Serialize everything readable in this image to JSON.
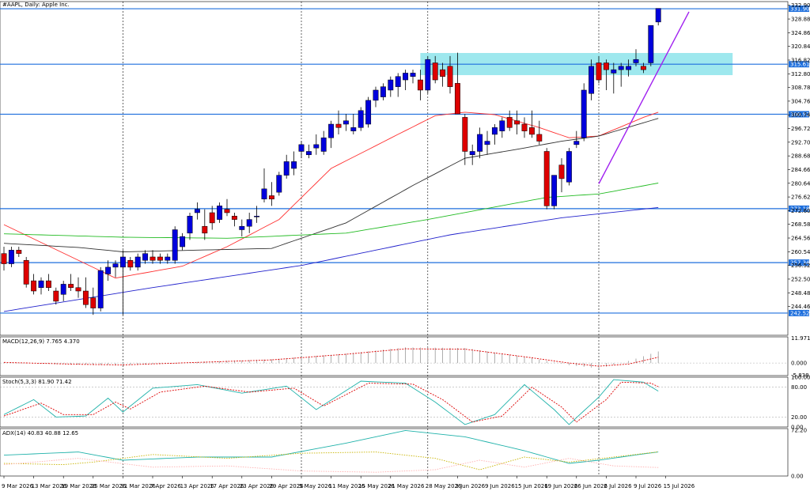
{
  "chart_data": {
    "type": "candlestick",
    "title": "#AAPL, Daily: Apple Inc.",
    "colors": {
      "up": "#0000dd",
      "down": "#dd0000",
      "ma20": "#ff3030",
      "ma50": "#303030",
      "ma100": "#22bb22",
      "ma200": "#2222cc",
      "level": "#1e6fdd",
      "zone": "#9ee8ee",
      "trend": "#a020f0",
      "macd_signal": "#dd0000",
      "stoch_k": "#20b2aa",
      "stoch_d": "#dd0000",
      "adx": "#20b2aa",
      "plus_di": "#c8b400",
      "minus_di": "#ffb0b0"
    },
    "price_axis": {
      "ylim": [
        236.0,
        334.0
      ],
      "ticks": [
        "332.90",
        "328.88",
        "324.86",
        "320.84",
        "316.82",
        "312.80",
        "308.78",
        "304.76",
        "300.74",
        "296.72",
        "292.70",
        "288.68",
        "284.66",
        "280.64",
        "276.62",
        "272.60",
        "268.58",
        "264.56",
        "260.54",
        "256.52",
        "252.50",
        "248.48",
        "244.46"
      ]
    },
    "levels": [
      {
        "price": 331.9,
        "label": "331.90"
      },
      {
        "price": 315.61,
        "label": "315.61"
      },
      {
        "price": 300.92,
        "label": "300.92"
      },
      {
        "price": 273.18,
        "label": "273.18"
      },
      {
        "price": 257.34,
        "label": "257.34"
      },
      {
        "price": 242.52,
        "label": "242.52"
      }
    ],
    "resistance_zone": {
      "x_from": "27 May 2026",
      "x_to": "21 Jul 2026",
      "price_from": 312.4,
      "price_to": 318.9
    },
    "trendline": {
      "from": {
        "x": "30 Jun 2026",
        "price": 280.5
      },
      "to": {
        "x": "17 Jul 2026",
        "price": 331.0
      }
    },
    "vertical_grid": [
      "31 Mar 2026",
      "4 May 2026",
      "28 May 2026",
      "30 Jun 2026"
    ],
    "x_tick_labels": [
      "9 Mar 2026",
      "13 Mar 2026",
      "19 Mar 2026",
      "25 Mar 2026",
      "31 Mar 2026",
      "7 Apr 2026",
      "13 Apr 2026",
      "17 Apr 2026",
      "23 Apr 2026",
      "29 Apr 2026",
      "5 May 2026",
      "11 May 2026",
      "15 May 2026",
      "21 May 2026",
      "28 May 2026",
      "3 Jun 2026",
      "9 Jun 2026",
      "15 Jun 2026",
      "19 Jun 2026",
      "26 Jun 2026",
      "2 Jul 2026",
      "9 Jul 2026",
      "15 Jul 2026"
    ],
    "ohlc": [
      [
        260,
        262,
        255,
        257
      ],
      [
        257,
        262,
        256,
        261
      ],
      [
        261,
        262,
        259,
        260
      ],
      [
        258,
        259,
        250,
        251
      ],
      [
        252,
        254,
        248,
        249
      ],
      [
        250,
        253,
        248,
        252
      ],
      [
        252,
        254,
        249,
        250
      ],
      [
        249,
        250,
        245,
        246
      ],
      [
        248,
        252,
        246,
        251
      ],
      [
        251,
        254,
        249,
        250
      ],
      [
        250,
        253,
        247,
        249
      ],
      [
        249,
        253,
        244,
        245
      ],
      [
        247,
        250,
        242,
        244
      ],
      [
        244,
        256,
        243,
        255
      ],
      [
        254,
        258,
        252,
        256
      ],
      [
        256,
        258,
        253,
        257
      ],
      [
        256,
        261,
        242,
        259
      ],
      [
        258,
        259,
        255,
        256
      ],
      [
        256,
        260,
        255,
        259
      ],
      [
        258,
        261,
        257,
        260
      ],
      [
        259,
        261,
        257,
        258
      ],
      [
        259,
        260,
        257,
        258
      ],
      [
        258,
        260,
        257,
        259
      ],
      [
        258,
        268,
        257,
        267
      ],
      [
        262,
        266,
        261,
        265
      ],
      [
        266,
        272,
        264,
        271
      ],
      [
        272,
        275,
        270,
        273
      ],
      [
        268,
        273,
        264,
        266
      ],
      [
        272,
        274,
        267,
        269
      ],
      [
        270,
        275,
        269,
        274
      ],
      [
        273,
        276,
        271,
        272
      ],
      [
        271,
        272,
        268,
        270
      ],
      [
        267,
        270,
        265,
        268
      ],
      [
        268,
        272,
        266,
        270
      ],
      [
        271,
        274,
        269,
        271
      ],
      [
        276,
        285,
        275,
        279
      ],
      [
        277,
        281,
        274,
        276
      ],
      [
        278,
        284,
        277,
        283
      ],
      [
        283,
        289,
        282,
        287
      ],
      [
        285,
        290,
        283,
        287
      ],
      [
        290,
        293,
        288,
        292
      ],
      [
        289,
        292,
        288,
        290
      ],
      [
        291,
        295,
        289,
        292
      ],
      [
        290,
        296,
        289,
        294
      ],
      [
        294,
        299,
        291,
        298
      ],
      [
        298,
        302,
        295,
        297
      ],
      [
        298,
        301,
        296,
        299
      ],
      [
        296,
        301,
        295,
        297
      ],
      [
        297,
        303,
        296,
        302
      ],
      [
        298,
        306,
        297,
        305
      ],
      [
        305,
        309,
        303,
        308
      ],
      [
        306,
        310,
        305,
        309
      ],
      [
        308,
        312,
        306,
        311
      ],
      [
        309,
        313,
        306,
        312
      ],
      [
        311,
        314,
        308,
        313
      ],
      [
        312,
        314,
        310,
        313
      ],
      [
        311,
        314,
        305,
        308
      ],
      [
        308,
        318,
        307,
        317
      ],
      [
        316,
        318,
        310,
        311
      ],
      [
        314,
        316,
        309,
        312
      ],
      [
        315,
        318,
        307,
        309
      ],
      [
        310,
        319,
        301,
        301
      ],
      [
        300,
        301,
        286,
        290
      ],
      [
        289,
        292,
        286,
        290
      ],
      [
        290,
        297,
        288,
        295
      ],
      [
        292,
        296,
        289,
        293
      ],
      [
        295,
        298,
        292,
        297
      ],
      [
        296,
        300,
        294,
        299
      ],
      [
        300,
        302,
        296,
        297
      ],
      [
        299,
        302,
        295,
        298
      ],
      [
        298,
        300,
        294,
        296
      ],
      [
        297,
        302,
        294,
        295
      ],
      [
        295,
        299,
        292,
        293
      ],
      [
        290,
        291,
        273,
        274
      ],
      [
        274,
        283,
        273,
        283
      ],
      [
        286,
        288,
        278,
        282
      ],
      [
        281,
        291,
        280,
        290
      ],
      [
        292,
        296,
        291,
        293
      ],
      [
        294,
        310,
        293,
        308
      ],
      [
        307,
        317,
        305,
        315
      ],
      [
        316,
        318,
        310,
        311
      ],
      [
        316,
        317,
        308,
        314
      ],
      [
        313,
        316,
        307,
        314
      ],
      [
        314,
        316,
        309,
        315
      ],
      [
        314,
        317,
        312,
        315
      ],
      [
        316,
        320,
        315,
        317
      ],
      [
        315,
        316,
        313,
        314
      ],
      [
        316,
        327,
        315,
        327
      ],
      [
        328,
        332,
        327,
        332
      ]
    ],
    "ma_series": {
      "ma20": [
        [
          0,
          268.5
        ],
        [
          15,
          252.8
        ],
        [
          24,
          256.3
        ],
        [
          30,
          262.0
        ],
        [
          37,
          270.0
        ],
        [
          44,
          285.0
        ],
        [
          53,
          295.0
        ],
        [
          58,
          300.5
        ],
        [
          62,
          301.5
        ],
        [
          66,
          300.8
        ],
        [
          72,
          297.0
        ],
        [
          76,
          294.0
        ],
        [
          80,
          294.5
        ],
        [
          86,
          300.0
        ],
        [
          90,
          303.0
        ]
      ],
      "ma50": [
        [
          0,
          263.0
        ],
        [
          10,
          261.8
        ],
        [
          16,
          260.5
        ],
        [
          26,
          261.0
        ],
        [
          36,
          261.5
        ],
        [
          46,
          269.0
        ],
        [
          55,
          280.0
        ],
        [
          62,
          288.0
        ],
        [
          70,
          291.0
        ],
        [
          75,
          293.0
        ],
        [
          80,
          294.5
        ],
        [
          90,
          301.0
        ]
      ],
      "ma100": [
        [
          0,
          265.8
        ],
        [
          16,
          264.8
        ],
        [
          30,
          264.5
        ],
        [
          46,
          266.0
        ],
        [
          57,
          270.0
        ],
        [
          73,
          276.5
        ],
        [
          80,
          277.5
        ],
        [
          90,
          281.5
        ]
      ],
      "ma200": [
        [
          0,
          243.0
        ],
        [
          20,
          250.0
        ],
        [
          40,
          256.5
        ],
        [
          60,
          265.5
        ],
        [
          75,
          270.5
        ],
        [
          90,
          274.0
        ]
      ]
    },
    "macd": {
      "label": "MACD(12,26,9) 7.765 4.370",
      "ticks": [
        "11.971",
        "0.000",
        "-5.838"
      ],
      "ylim": [
        -6.0,
        12.5
      ],
      "hist": [
        [
          0,
          0.3
        ],
        [
          10,
          -0.7
        ],
        [
          16,
          -1.0
        ],
        [
          26,
          0.5
        ],
        [
          36,
          1.8
        ],
        [
          46,
          4.5
        ],
        [
          54,
          7.5
        ],
        [
          62,
          7.2
        ],
        [
          70,
          3.0
        ],
        [
          76,
          -1.0
        ],
        [
          80,
          -2.6
        ],
        [
          84,
          1.0
        ],
        [
          90,
          7.8
        ]
      ],
      "signal": [
        [
          0,
          0.3
        ],
        [
          10,
          -0.6
        ],
        [
          16,
          -0.9
        ],
        [
          26,
          0.3
        ],
        [
          36,
          1.5
        ],
        [
          46,
          4.2
        ],
        [
          54,
          6.8
        ],
        [
          62,
          6.6
        ],
        [
          70,
          3.0
        ],
        [
          76,
          0.0
        ],
        [
          80,
          -1.5
        ],
        [
          84,
          -0.5
        ],
        [
          90,
          4.4
        ]
      ]
    },
    "stoch": {
      "label": "Stoch(5,3,3) 81.90 71.42",
      "ticks": [
        "100.00",
        "80.00",
        "20.00",
        "0.00"
      ],
      "ylim": [
        0,
        100
      ],
      "k": [
        [
          0,
          25
        ],
        [
          4,
          55
        ],
        [
          7,
          20
        ],
        [
          11,
          22
        ],
        [
          14,
          58
        ],
        [
          16,
          30
        ],
        [
          20,
          78
        ],
        [
          26,
          85
        ],
        [
          32,
          68
        ],
        [
          38,
          82
        ],
        [
          42,
          35
        ],
        [
          48,
          92
        ],
        [
          54,
          88
        ],
        [
          58,
          50
        ],
        [
          62,
          5
        ],
        [
          66,
          25
        ],
        [
          70,
          85
        ],
        [
          74,
          35
        ],
        [
          76,
          5
        ],
        [
          80,
          60
        ],
        [
          82,
          95
        ],
        [
          86,
          90
        ],
        [
          88,
          72
        ],
        [
          90,
          82
        ]
      ],
      "d": [
        [
          0,
          22
        ],
        [
          5,
          48
        ],
        [
          8,
          25
        ],
        [
          12,
          25
        ],
        [
          15,
          50
        ],
        [
          17,
          36
        ],
        [
          21,
          70
        ],
        [
          27,
          82
        ],
        [
          33,
          70
        ],
        [
          39,
          78
        ],
        [
          43,
          42
        ],
        [
          49,
          88
        ],
        [
          55,
          86
        ],
        [
          59,
          55
        ],
        [
          63,
          10
        ],
        [
          67,
          22
        ],
        [
          71,
          80
        ],
        [
          75,
          40
        ],
        [
          77,
          10
        ],
        [
          81,
          55
        ],
        [
          83,
          90
        ],
        [
          87,
          88
        ],
        [
          89,
          74
        ],
        [
          90,
          71
        ]
      ]
    },
    "adx": {
      "label": "ADX(14) 40.83 40.88 12.65",
      "ticks": [
        "72.20",
        "0.00"
      ],
      "ylim": [
        0,
        75
      ],
      "adx_line": [
        [
          0,
          33
        ],
        [
          10,
          38
        ],
        [
          16,
          25
        ],
        [
          26,
          30
        ],
        [
          36,
          30
        ],
        [
          46,
          52
        ],
        [
          54,
          72
        ],
        [
          62,
          62
        ],
        [
          70,
          40
        ],
        [
          76,
          20
        ],
        [
          80,
          25
        ],
        [
          86,
          35
        ],
        [
          90,
          41
        ]
      ],
      "plus_di": [
        [
          0,
          20
        ],
        [
          8,
          18
        ],
        [
          12,
          22
        ],
        [
          20,
          34
        ],
        [
          30,
          28
        ],
        [
          40,
          36
        ],
        [
          50,
          38
        ],
        [
          58,
          28
        ],
        [
          64,
          10
        ],
        [
          70,
          30
        ],
        [
          76,
          22
        ],
        [
          82,
          30
        ],
        [
          90,
          41
        ]
      ],
      "minus_di": [
        [
          0,
          18
        ],
        [
          10,
          28
        ],
        [
          20,
          14
        ],
        [
          30,
          16
        ],
        [
          40,
          8
        ],
        [
          50,
          6
        ],
        [
          58,
          10
        ],
        [
          64,
          25
        ],
        [
          70,
          14
        ],
        [
          76,
          28
        ],
        [
          82,
          16
        ],
        [
          90,
          12.6
        ]
      ]
    }
  }
}
